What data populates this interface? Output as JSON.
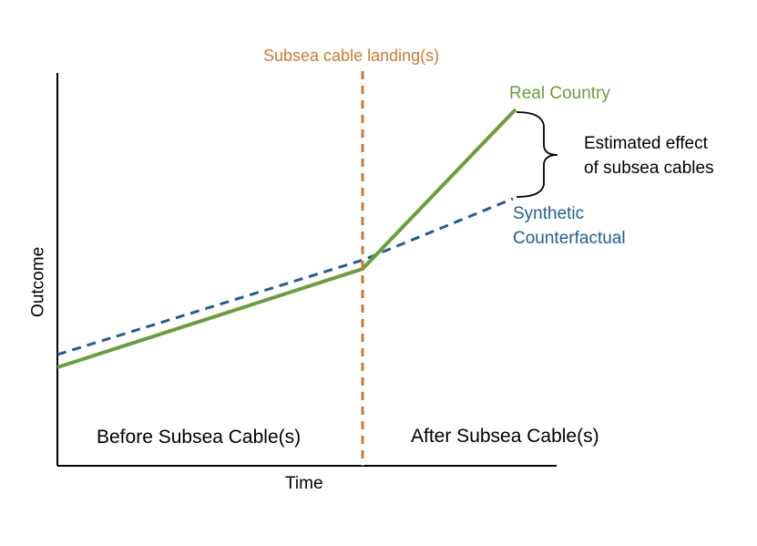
{
  "labels": {
    "event": "Subsea cable landing(s)",
    "real_series": "Real Country",
    "synthetic_line1": "Synthetic",
    "synthetic_line2": "Counterfactual",
    "effect_line1": "Estimated effect",
    "effect_line2": "of subsea cables",
    "before_period": "Before Subsea Cable(s)",
    "after_period": "After Subsea Cable(s)",
    "xlabel": "Time",
    "ylabel": "Outcome"
  },
  "colors": {
    "real": "#6a9e3a",
    "synthetic": "#1f5c99",
    "event": "#cc7a2e",
    "axis": "#000000",
    "text": "#000000"
  }
}
